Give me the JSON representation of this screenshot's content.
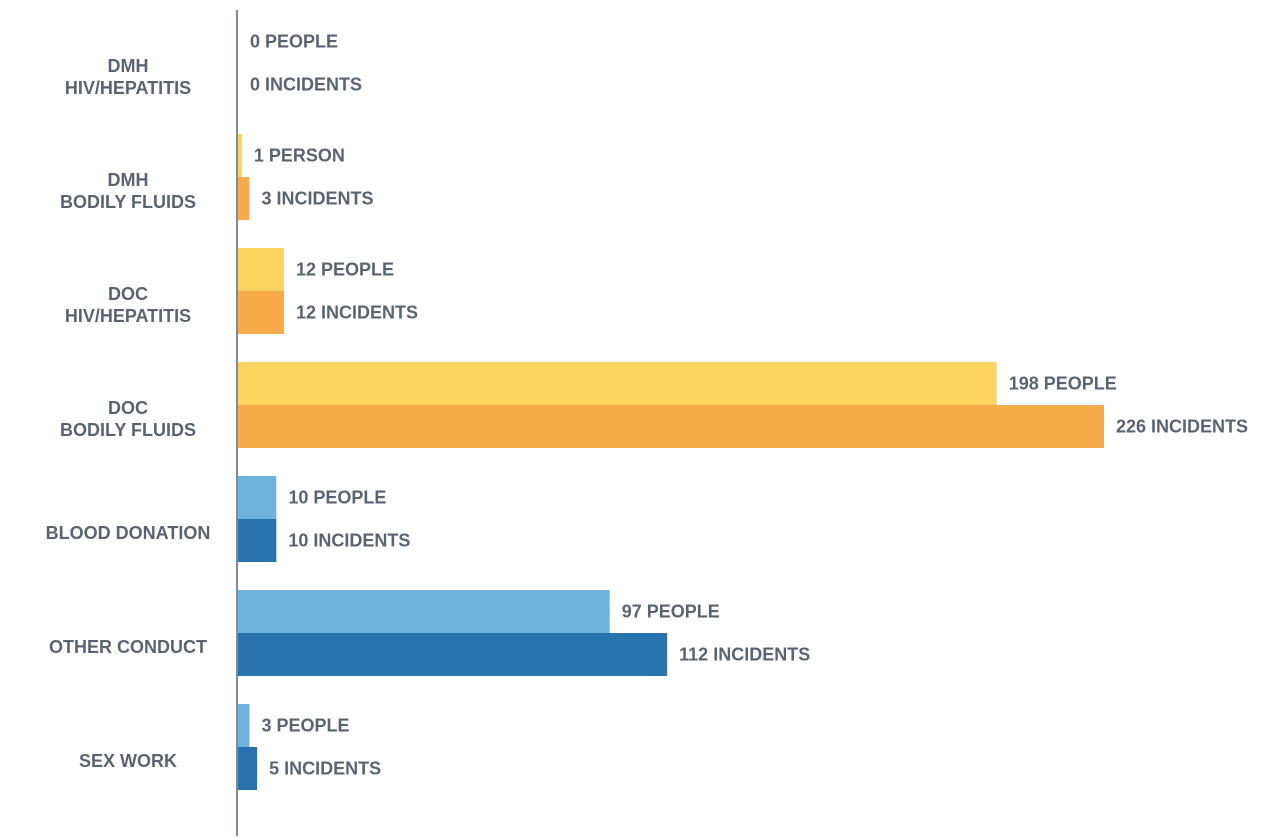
{
  "chart_data": {
    "type": "bar",
    "orientation": "horizontal",
    "grid": false,
    "xlim": [
      0,
      226
    ],
    "categories": [
      {
        "label_lines": [
          "DMH",
          "HIV/HEPATITIS"
        ],
        "people": 0,
        "people_label": "0 PEOPLE",
        "incidents": 0,
        "incidents_label": "0 INCIDENTS",
        "people_color": "#fdd35f",
        "incidents_color": "#f7ab4b"
      },
      {
        "label_lines": [
          "DMH",
          "BODILY FLUIDS"
        ],
        "people": 1,
        "people_label": "1 PERSON",
        "incidents": 3,
        "incidents_label": "3 INCIDENTS",
        "people_color": "#fdd35f",
        "incidents_color": "#f7ab4b"
      },
      {
        "label_lines": [
          "DOC",
          "HIV/HEPATITIS"
        ],
        "people": 12,
        "people_label": "12 PEOPLE",
        "incidents": 12,
        "incidents_label": "12 INCIDENTS",
        "people_color": "#fdd35f",
        "incidents_color": "#f7ab4b"
      },
      {
        "label_lines": [
          "DOC",
          "BODILY FLUIDS"
        ],
        "people": 198,
        "people_label": "198 PEOPLE",
        "incidents": 226,
        "incidents_label": "226 INCIDENTS",
        "people_color": "#fdd35f",
        "incidents_color": "#f7ab4b"
      },
      {
        "label_lines": [
          "BLOOD DONATION"
        ],
        "people": 10,
        "people_label": "10 PEOPLE",
        "incidents": 10,
        "incidents_label": "10 INCIDENTS",
        "people_color": "#6db3dc",
        "incidents_color": "#2872ae"
      },
      {
        "label_lines": [
          "OTHER CONDUCT"
        ],
        "people": 97,
        "people_label": "97 PEOPLE",
        "incidents": 112,
        "incidents_label": "112 INCIDENTS",
        "people_color": "#6db3dc",
        "incidents_color": "#2872ae"
      },
      {
        "label_lines": [
          "SEX WORK"
        ],
        "people": 3,
        "people_label": "3 PEOPLE",
        "incidents": 5,
        "incidents_label": "5 INCIDENTS",
        "people_color": "#6db3dc",
        "incidents_color": "#2872ae"
      }
    ],
    "colors": {
      "axis": "#5a6470",
      "text": "#5a6470"
    }
  }
}
